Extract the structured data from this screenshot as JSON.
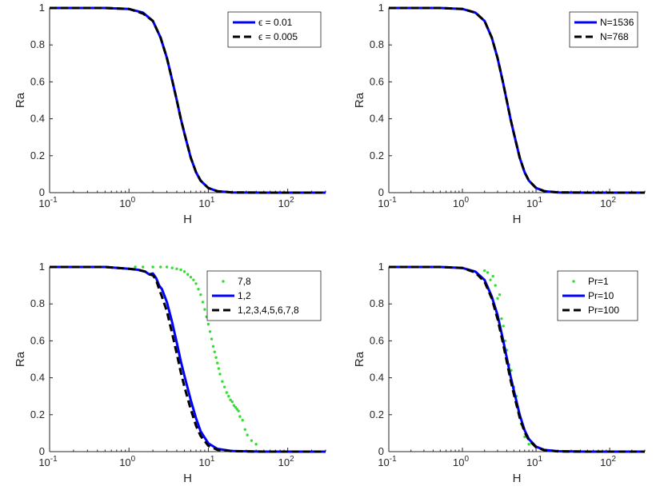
{
  "chart_data": [
    {
      "type": "line",
      "xscale": "log",
      "xlim": [
        0.1,
        300
      ],
      "ylim": [
        0,
        1
      ],
      "xlabel": "H",
      "ylabel": "Ra",
      "xticks": [
        "10",
        "10",
        "10",
        "10"
      ],
      "xtick_exponents": [
        "-1",
        "0",
        "1",
        "2"
      ],
      "yticks": [
        "0",
        "0.2",
        "0.4",
        "0.6",
        "0.8",
        "1"
      ],
      "legend_position": "top-right",
      "series": [
        {
          "name": "ϵ = 0.01",
          "style": "solid",
          "color": "#0000ff",
          "x": [
            0.1,
            0.5,
            1.0,
            1.5,
            2.0,
            2.5,
            3.0,
            3.5,
            4.0,
            4.5,
            5.0,
            6.0,
            7.0,
            8.0,
            10.0,
            13.0,
            20.0,
            50.0,
            300.0
          ],
          "y": [
            1.0,
            1.0,
            0.995,
            0.975,
            0.93,
            0.84,
            0.73,
            0.61,
            0.5,
            0.4,
            0.32,
            0.19,
            0.11,
            0.065,
            0.025,
            0.008,
            0.0015,
            0.0,
            0.0
          ]
        },
        {
          "name": "ϵ = 0.005",
          "style": "dashed",
          "color": "#000000",
          "x": [
            0.1,
            0.5,
            1.0,
            1.5,
            2.0,
            2.5,
            3.0,
            3.5,
            4.0,
            4.5,
            5.0,
            6.0,
            7.0,
            8.0,
            10.0,
            13.0,
            20.0,
            50.0,
            300.0
          ],
          "y": [
            1.0,
            1.0,
            0.995,
            0.97,
            0.93,
            0.84,
            0.73,
            0.61,
            0.5,
            0.4,
            0.32,
            0.19,
            0.11,
            0.065,
            0.025,
            0.008,
            0.0015,
            0.0,
            0.0
          ]
        }
      ]
    },
    {
      "type": "line",
      "xscale": "log",
      "xlim": [
        0.1,
        300
      ],
      "ylim": [
        0,
        1
      ],
      "xlabel": "H",
      "ylabel": "Ra",
      "xticks": [
        "10",
        "10",
        "10",
        "10"
      ],
      "xtick_exponents": [
        "-1",
        "0",
        "1",
        "2"
      ],
      "yticks": [
        "0",
        "0.2",
        "0.4",
        "0.6",
        "0.8",
        "1"
      ],
      "legend_position": "top-right",
      "series": [
        {
          "name": "N=1536",
          "style": "solid",
          "color": "#0000ff",
          "x": [
            0.1,
            0.5,
            1.0,
            1.5,
            2.0,
            2.5,
            3.0,
            3.5,
            4.0,
            4.5,
            5.0,
            6.0,
            7.0,
            8.0,
            10.0,
            13.0,
            20.0,
            50.0,
            300.0
          ],
          "y": [
            1.0,
            1.0,
            0.995,
            0.975,
            0.93,
            0.84,
            0.73,
            0.61,
            0.5,
            0.4,
            0.32,
            0.19,
            0.11,
            0.065,
            0.025,
            0.008,
            0.0015,
            0.0,
            0.0
          ]
        },
        {
          "name": "N=768",
          "style": "dashed",
          "color": "#000000",
          "x": [
            0.1,
            0.5,
            1.0,
            1.5,
            2.0,
            2.5,
            3.0,
            3.5,
            4.0,
            4.5,
            5.0,
            6.0,
            7.0,
            8.0,
            10.0,
            13.0,
            20.0,
            50.0,
            300.0
          ],
          "y": [
            1.0,
            1.0,
            0.995,
            0.975,
            0.93,
            0.84,
            0.73,
            0.61,
            0.5,
            0.4,
            0.32,
            0.19,
            0.11,
            0.065,
            0.025,
            0.008,
            0.0015,
            0.0,
            0.0
          ]
        }
      ]
    },
    {
      "type": "line",
      "xscale": "log",
      "xlim": [
        0.1,
        300
      ],
      "ylim": [
        0,
        1
      ],
      "xlabel": "H",
      "ylabel": "Ra",
      "xticks": [
        "10",
        "10",
        "10",
        "10"
      ],
      "xtick_exponents": [
        "-1",
        "0",
        "1",
        "2"
      ],
      "yticks": [
        "0",
        "0.2",
        "0.4",
        "0.6",
        "0.8",
        "1"
      ],
      "legend_position": "top-right",
      "series": [
        {
          "name": "7,8",
          "style": "dots",
          "color": "#33dd33",
          "x": [
            1.2,
            1.5,
            2.0,
            2.5,
            3.0,
            3.5,
            4.0,
            4.5,
            5.0,
            5.5,
            6.0,
            6.5,
            7.0,
            7.5,
            8.0,
            8.5,
            9.0,
            9.5,
            10.0,
            10.5,
            11.0,
            11.5,
            12.0,
            12.5,
            13.0,
            13.5,
            14.0,
            15.0,
            16.0,
            17.0,
            18.0,
            19.0,
            20.0,
            21.0,
            22.0,
            23.0,
            24.0,
            25.0,
            27.0,
            29.0,
            31.0,
            35.0,
            40.0
          ],
          "y": [
            1.0,
            1.0,
            1.0,
            1.0,
            1.0,
            0.995,
            0.99,
            0.985,
            0.975,
            0.96,
            0.945,
            0.93,
            0.91,
            0.88,
            0.85,
            0.81,
            0.77,
            0.73,
            0.69,
            0.65,
            0.61,
            0.57,
            0.54,
            0.51,
            0.48,
            0.45,
            0.42,
            0.38,
            0.35,
            0.32,
            0.3,
            0.28,
            0.27,
            0.25,
            0.24,
            0.23,
            0.22,
            0.19,
            0.17,
            0.12,
            0.09,
            0.06,
            0.04
          ]
        },
        {
          "name": "1,2",
          "style": "solid",
          "color": "#0000ff",
          "x": [
            0.1,
            0.5,
            1.0,
            1.3,
            1.6,
            1.8,
            2.0,
            2.2,
            2.4,
            2.6,
            3.0,
            3.5,
            4.0,
            4.5,
            5.0,
            6.0,
            7.0,
            8.0,
            10.0,
            13.0,
            20.0,
            50.0,
            300.0
          ],
          "y": [
            1.0,
            1.0,
            0.99,
            0.985,
            0.975,
            0.96,
            0.965,
            0.94,
            0.9,
            0.88,
            0.81,
            0.7,
            0.59,
            0.49,
            0.41,
            0.28,
            0.18,
            0.11,
            0.045,
            0.015,
            0.003,
            0.0,
            0.0
          ]
        },
        {
          "name": "1,2,3,4,5,6,7,8",
          "style": "dashed",
          "color": "#000000",
          "x": [
            0.1,
            0.5,
            1.0,
            1.3,
            1.6,
            1.8,
            2.0,
            2.2,
            2.4,
            2.6,
            3.0,
            3.5,
            4.0,
            4.5,
            5.0,
            6.0,
            7.0,
            8.0,
            10.0,
            13.0,
            20.0,
            50.0,
            300.0
          ],
          "y": [
            1.0,
            1.0,
            0.99,
            0.985,
            0.975,
            0.96,
            0.955,
            0.93,
            0.88,
            0.84,
            0.76,
            0.64,
            0.53,
            0.43,
            0.35,
            0.23,
            0.14,
            0.085,
            0.032,
            0.01,
            0.002,
            0.0,
            0.0
          ]
        }
      ]
    },
    {
      "type": "line",
      "xscale": "log",
      "xlim": [
        0.1,
        300
      ],
      "ylim": [
        0,
        1
      ],
      "xlabel": "H",
      "ylabel": "Ra",
      "xticks": [
        "10",
        "10",
        "10",
        "10"
      ],
      "xtick_exponents": [
        "-1",
        "0",
        "1",
        "2"
      ],
      "yticks": [
        "0",
        "0.2",
        "0.4",
        "0.6",
        "0.8",
        "1"
      ],
      "legend_position": "top-right",
      "series": [
        {
          "name": "Pr=1",
          "style": "dots",
          "color": "#33dd33",
          "x": [
            2.0,
            2.2,
            2.4,
            2.6,
            2.8,
            3.0,
            3.2,
            3.4,
            3.6,
            3.8,
            4.0,
            4.3,
            4.6,
            5.0,
            5.4,
            5.8,
            6.3,
            7.0,
            8.0
          ],
          "y": [
            0.98,
            0.97,
            0.93,
            0.95,
            0.9,
            0.83,
            0.85,
            0.72,
            0.68,
            0.6,
            0.55,
            0.47,
            0.44,
            0.35,
            0.3,
            0.22,
            0.15,
            0.08,
            0.04
          ]
        },
        {
          "name": "Pr=10",
          "style": "solid",
          "color": "#0000ff",
          "x": [
            0.1,
            0.5,
            1.0,
            1.5,
            2.0,
            2.5,
            3.0,
            3.5,
            4.0,
            4.5,
            5.0,
            6.0,
            7.0,
            8.0,
            10.0,
            13.0,
            20.0,
            50.0,
            300.0
          ],
          "y": [
            1.0,
            1.0,
            0.995,
            0.975,
            0.93,
            0.84,
            0.74,
            0.62,
            0.51,
            0.41,
            0.33,
            0.2,
            0.115,
            0.068,
            0.027,
            0.009,
            0.002,
            0.0,
            0.0
          ]
        },
        {
          "name": "Pr=100",
          "style": "dashed",
          "color": "#000000",
          "x": [
            0.1,
            0.5,
            1.0,
            1.5,
            2.0,
            2.5,
            3.0,
            3.5,
            4.0,
            4.5,
            5.0,
            6.0,
            7.0,
            8.0,
            10.0,
            13.0,
            20.0,
            50.0,
            300.0
          ],
          "y": [
            1.0,
            1.0,
            0.995,
            0.97,
            0.92,
            0.83,
            0.72,
            0.6,
            0.49,
            0.39,
            0.31,
            0.185,
            0.105,
            0.062,
            0.024,
            0.008,
            0.0015,
            0.0,
            0.0
          ]
        }
      ]
    }
  ]
}
